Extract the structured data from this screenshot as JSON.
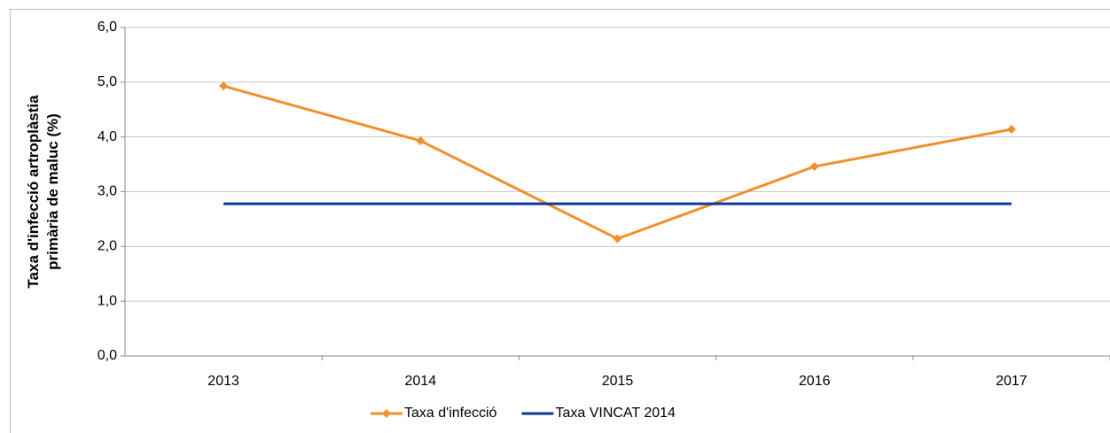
{
  "chart_data": {
    "type": "line",
    "ylabel": [
      "Taxa d'infecció artroplàstia",
      "primària de maluc  (%)"
    ],
    "categories": [
      "2013",
      "2014",
      "2015",
      "2016",
      "2017"
    ],
    "series": [
      {
        "name": "Taxa d'infecció",
        "color": "#f0902c",
        "marker": "diamond",
        "values": [
          4.93,
          3.93,
          2.14,
          3.46,
          4.14
        ]
      },
      {
        "name": "Taxa VINCAT 2014",
        "color": "#0b3a9a",
        "marker": "none",
        "values": [
          2.78,
          2.78,
          2.78,
          2.78,
          2.78
        ]
      }
    ],
    "ylim": [
      0,
      6
    ],
    "yticks": [
      {
        "value": 0,
        "label": "0,0"
      },
      {
        "value": 1,
        "label": "1,0"
      },
      {
        "value": 2,
        "label": "2,0"
      },
      {
        "value": 3,
        "label": "3,0"
      },
      {
        "value": 4,
        "label": "4,0"
      },
      {
        "value": 5,
        "label": "5,0"
      },
      {
        "value": 6,
        "label": "6,0"
      }
    ],
    "grid": true,
    "legend": "bottom"
  }
}
